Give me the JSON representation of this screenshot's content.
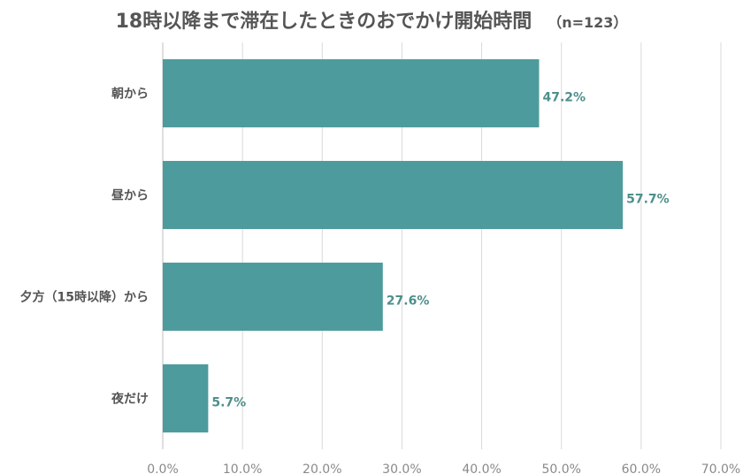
{
  "chart_data": {
    "type": "bar",
    "orientation": "horizontal",
    "title": "18時以降まで滞在したときのおでかけ開始時間",
    "subtitle": "（n=123）",
    "categories": [
      "朝から",
      "昼から",
      "夕方（15時以降）から",
      "夜だけ"
    ],
    "values": [
      47.2,
      57.7,
      27.6,
      5.7
    ],
    "value_labels": [
      "47.2%",
      "57.7%",
      "27.6%",
      "5.7%"
    ],
    "xlim": [
      0,
      70
    ],
    "x_ticks": [
      "0.0%",
      "10.0%",
      "20.0%",
      "30.0%",
      "40.0%",
      "50.0%",
      "60.0%",
      "70.0%"
    ],
    "grid": true,
    "legend": "none",
    "bar_color": "#4e9b9d",
    "label_color": "#4e8f8c"
  }
}
